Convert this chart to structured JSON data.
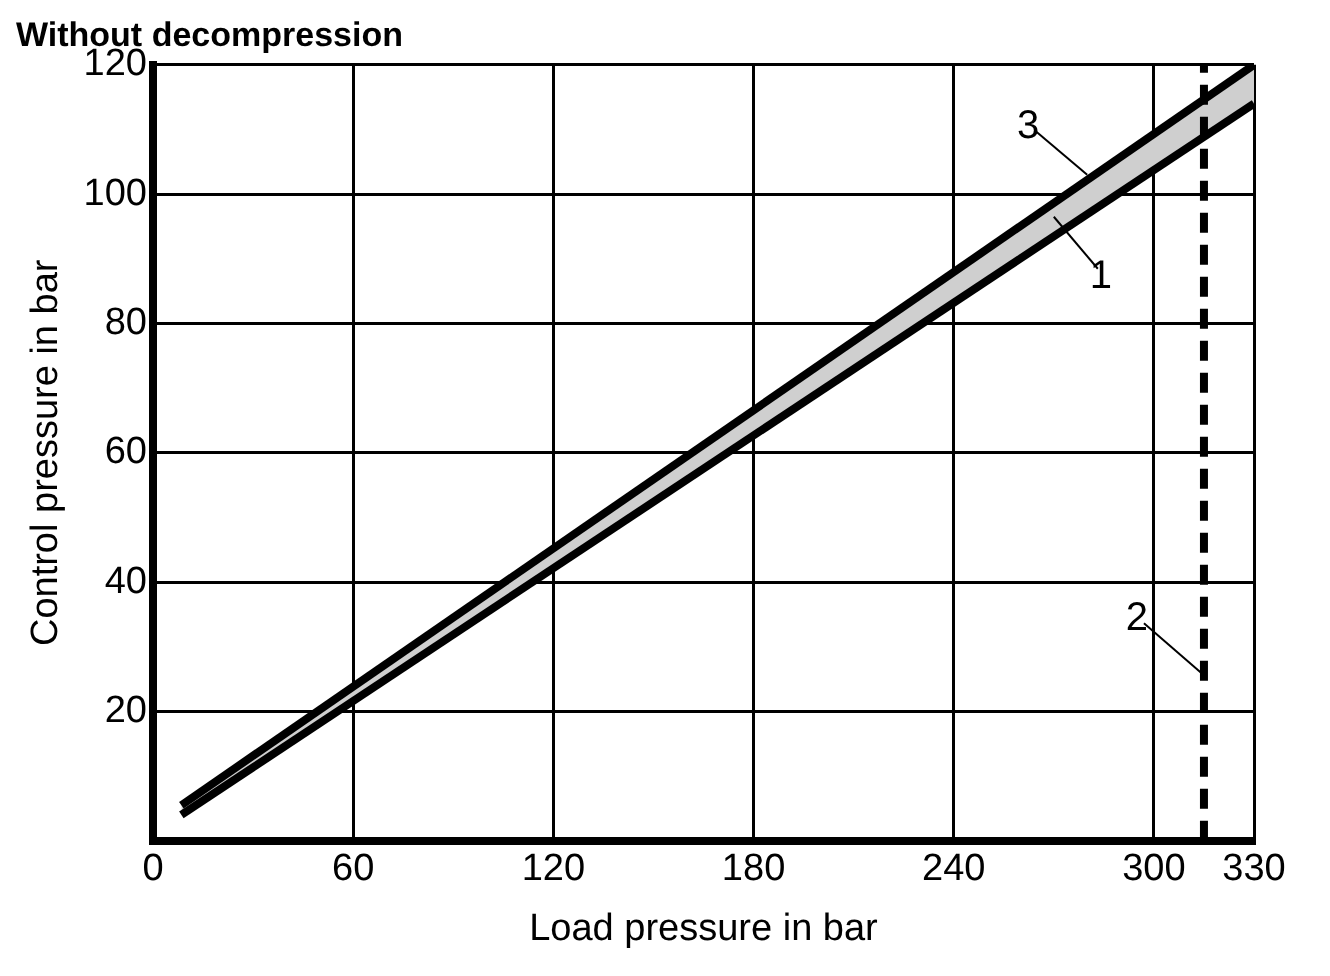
{
  "chart_data": {
    "type": "line",
    "title": "Without decompression",
    "xlabel": "Load pressure in bar",
    "ylabel": "Control pressure in bar",
    "x": [
      8.5,
      330
    ],
    "series": [
      {
        "color": "#000000",
        "values": [
          5.5,
          120
        ],
        "lower": [
          4,
          114
        ],
        "upper": [
          5.5,
          120
        ]
      },
      {
        "color": "#000000",
        "values": [
          4,
          114
        ]
      }
    ],
    "xlim": [
      0,
      330
    ],
    "xticks": [
      0,
      60,
      120,
      180,
      240,
      300,
      330
    ],
    "ylim": [
      0,
      120
    ],
    "yticks": [
      20,
      40,
      60,
      80,
      100,
      120
    ],
    "grid": true,
    "marker": "none",
    "line_style": "solid",
    "ref_lines": [
      {
        "axis": "x",
        "value": 315,
        "color": "#000000",
        "line_style": "dashed"
      }
    ],
    "annotations": [
      {
        "text": "3",
        "x": 280,
        "y": 103
      },
      {
        "text": "1",
        "x": 270,
        "y": 96.5
      },
      {
        "text": "2",
        "x": 315,
        "y": 25.6
      }
    ]
  }
}
